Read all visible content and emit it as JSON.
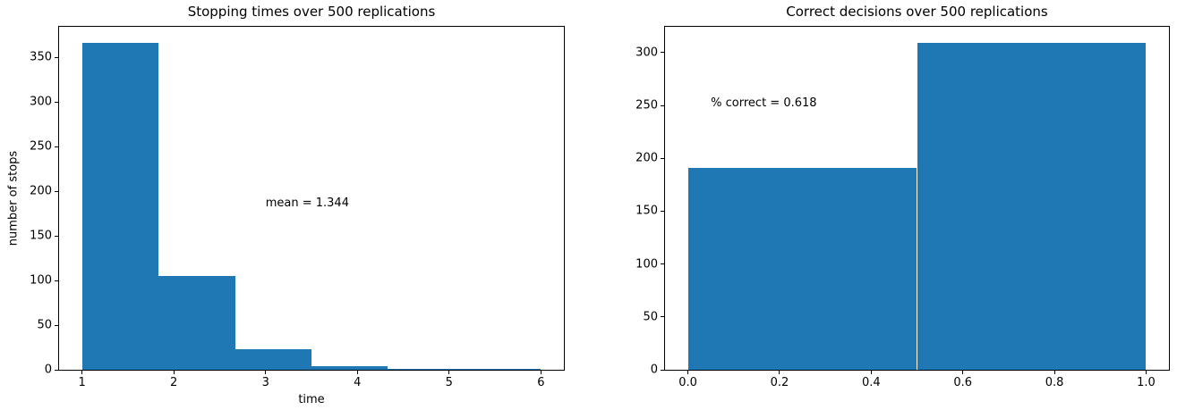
{
  "figure": {
    "background": "#ffffff",
    "bar_color": "#1f77b4",
    "axis_color": "#000000"
  },
  "chart_data": [
    {
      "type": "bar",
      "subtype": "histogram",
      "title": "Stopping times over 500 replications",
      "xlabel": "time",
      "ylabel": "number of stops",
      "bin_edges": [
        1,
        1.8333,
        2.6667,
        3.5,
        4.3333,
        5.1667,
        6
      ],
      "counts": [
        366,
        105,
        23,
        4,
        1,
        1
      ],
      "total_replications": 500,
      "xlim": [
        0.75,
        6.25
      ],
      "ylim": [
        0,
        384.3
      ],
      "xticks": [
        1,
        2,
        3,
        4,
        5,
        6
      ],
      "xtick_labels": [
        "1",
        "2",
        "3",
        "4",
        "5",
        "6"
      ],
      "yticks": [
        0,
        50,
        100,
        150,
        200,
        250,
        300,
        350
      ],
      "ytick_labels": [
        "0",
        "50",
        "100",
        "150",
        "200",
        "250",
        "300",
        "350"
      ],
      "grid": false,
      "legend": null,
      "annotation": {
        "text": "mean = 1.344",
        "x": 3.0,
        "y": 182
      }
    },
    {
      "type": "bar",
      "subtype": "histogram",
      "title": "Correct decisions over 500 replications",
      "xlabel": "",
      "ylabel": "",
      "bin_edges": [
        0,
        0.5,
        1.0
      ],
      "counts": [
        191,
        309
      ],
      "total_replications": 500,
      "xlim": [
        -0.05,
        1.05
      ],
      "ylim": [
        0,
        324.45
      ],
      "xticks": [
        0.0,
        0.2,
        0.4,
        0.6,
        0.8,
        1.0
      ],
      "xtick_labels": [
        "0.0",
        "0.2",
        "0.4",
        "0.6",
        "0.8",
        "1.0"
      ],
      "yticks": [
        0,
        50,
        100,
        150,
        200,
        250,
        300
      ],
      "ytick_labels": [
        "0",
        "50",
        "100",
        "150",
        "200",
        "250",
        "300"
      ],
      "grid": false,
      "legend": null,
      "annotation": {
        "text": "% correct = 0.618",
        "x": 0.05,
        "y": 248
      }
    }
  ]
}
